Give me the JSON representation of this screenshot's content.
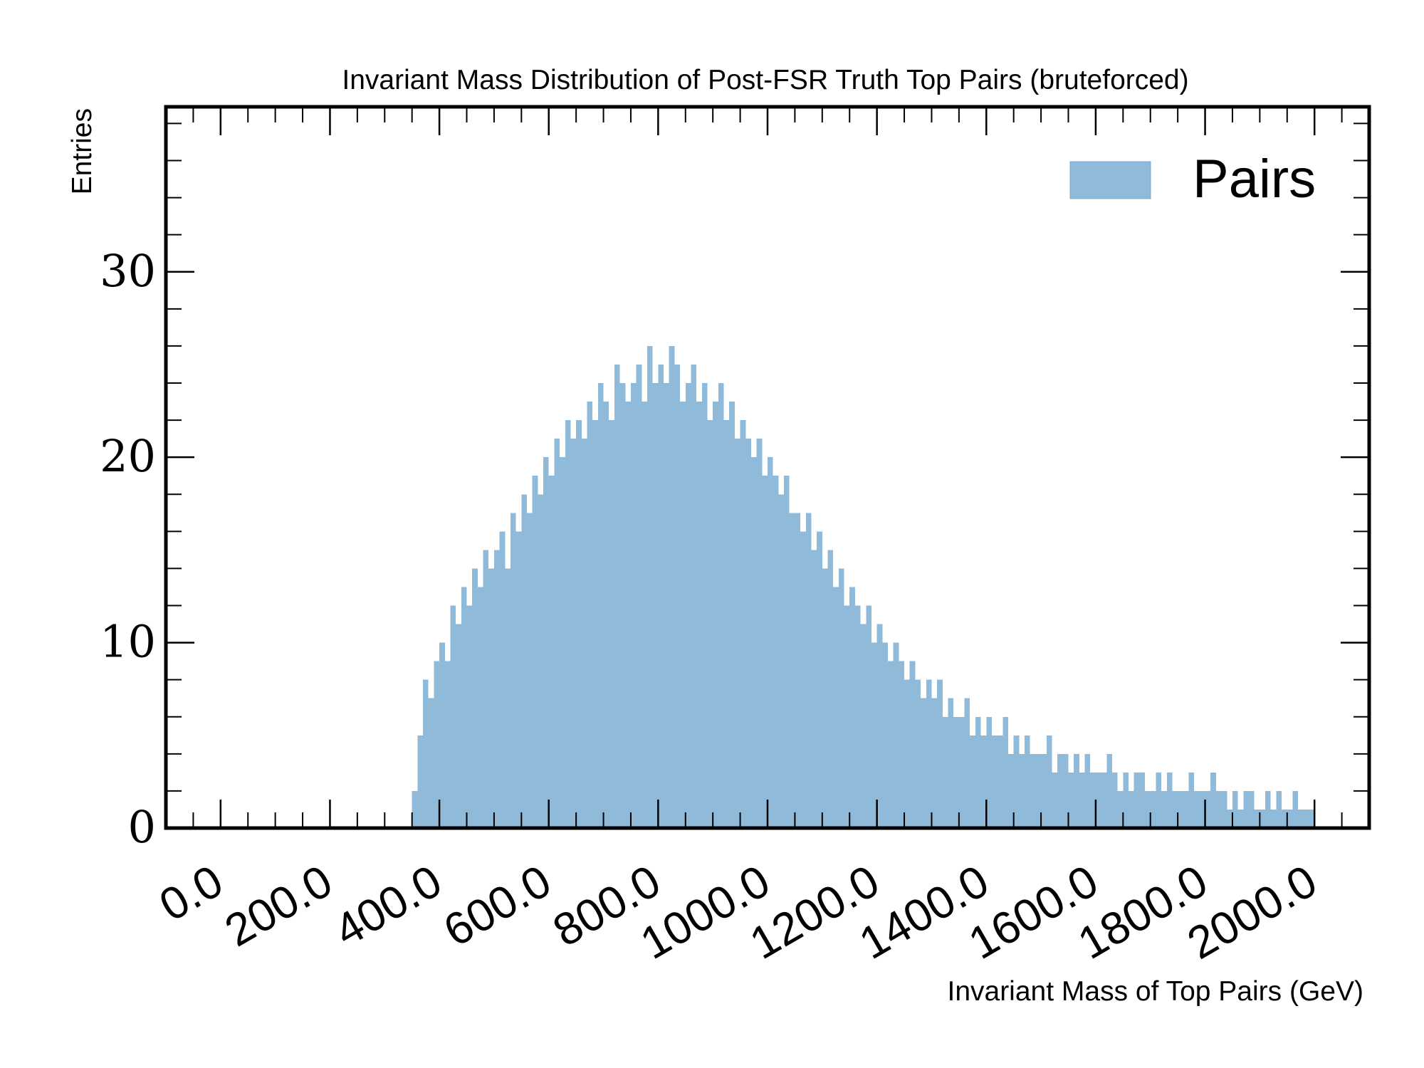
{
  "chart_data": {
    "type": "histogram",
    "title": "Invariant Mass Distribution of Post-FSR Truth Top Pairs (bruteforced)",
    "xlabel": "Invariant Mass of Top Pairs (GeV)",
    "ylabel": "Entries",
    "series": [
      {
        "name": "Pairs",
        "color": "#8fbad9",
        "bins": [
          350,
          360,
          370,
          380,
          390,
          400,
          410,
          420,
          430,
          440,
          450,
          460,
          470,
          480,
          490,
          500,
          510,
          520,
          530,
          540,
          550,
          560,
          570,
          580,
          590,
          600,
          610,
          620,
          630,
          640,
          650,
          660,
          670,
          680,
          690,
          700,
          710,
          720,
          730,
          740,
          750,
          760,
          770,
          780,
          790,
          800,
          810,
          820,
          830,
          840,
          850,
          860,
          870,
          880,
          890,
          900,
          910,
          920,
          930,
          940,
          950,
          960,
          970,
          980,
          990,
          1000,
          1010,
          1020,
          1030,
          1040,
          1050,
          1060,
          1070,
          1080,
          1090,
          1100,
          1110,
          1120,
          1130,
          1140,
          1150,
          1160,
          1170,
          1180,
          1190,
          1200,
          1210,
          1220,
          1230,
          1240,
          1250,
          1260,
          1270,
          1280,
          1290,
          1300,
          1310,
          1320,
          1330,
          1340,
          1350,
          1360,
          1370,
          1380,
          1390,
          1400,
          1410,
          1420,
          1430,
          1440,
          1450,
          1460,
          1470,
          1480,
          1490,
          1500,
          1510,
          1520,
          1530,
          1540,
          1550,
          1560,
          1570,
          1580,
          1590,
          1600,
          1610,
          1620,
          1630,
          1640,
          1650,
          1660,
          1670,
          1680,
          1690,
          1700,
          1710,
          1720,
          1730,
          1740,
          1750,
          1760,
          1770,
          1780,
          1790,
          1800,
          1810,
          1820,
          1830,
          1840,
          1850,
          1860,
          1870,
          1880,
          1890,
          1900,
          1910,
          1920,
          1930,
          1940,
          1950,
          1960,
          1970,
          1980,
          1990,
          2000
        ],
        "values": [
          2,
          5,
          8,
          7,
          9,
          10,
          9,
          12,
          11,
          13,
          12,
          14,
          13,
          15,
          14,
          15,
          16,
          14,
          17,
          16,
          18,
          17,
          19,
          18,
          20,
          19,
          21,
          20,
          22,
          21,
          22,
          21,
          23,
          22,
          24,
          23,
          22,
          25,
          24,
          23,
          24,
          25,
          23,
          26,
          24,
          25,
          24,
          26,
          25,
          23,
          24,
          25,
          23,
          24,
          22,
          23,
          24,
          22,
          23,
          21,
          22,
          21,
          20,
          21,
          19,
          20,
          19,
          18,
          19,
          17,
          17,
          16,
          17,
          15,
          16,
          14,
          15,
          13,
          14,
          12,
          13,
          12,
          11,
          12,
          10,
          11,
          10,
          9,
          10,
          9,
          8,
          9,
          8,
          7,
          8,
          7,
          8,
          6,
          7,
          6,
          6,
          7,
          5,
          6,
          5,
          6,
          5,
          5,
          6,
          4,
          5,
          4,
          5,
          4,
          4,
          4,
          5,
          3,
          4,
          4,
          3,
          4,
          3,
          4,
          3,
          3,
          3,
          4,
          3,
          2,
          3,
          2,
          3,
          3,
          2,
          2,
          3,
          2,
          3,
          2,
          2,
          2,
          3,
          2,
          2,
          2,
          3,
          2,
          2,
          1,
          2,
          1,
          2,
          2,
          1,
          1,
          2,
          1,
          2,
          1,
          1,
          2,
          1,
          1,
          1
        ]
      }
    ],
    "xlim": [
      -100,
      2100
    ],
    "ylim": [
      0,
      38.9
    ],
    "xticks": [
      {
        "value": 0,
        "label": "0.0"
      },
      {
        "value": 200,
        "label": "200.0"
      },
      {
        "value": 400,
        "label": "400.0"
      },
      {
        "value": 600,
        "label": "600.0"
      },
      {
        "value": 800,
        "label": "800.0"
      },
      {
        "value": 1000,
        "label": "1000.0"
      },
      {
        "value": 1200,
        "label": "1200.0"
      },
      {
        "value": 1400,
        "label": "1400.0"
      },
      {
        "value": 1600,
        "label": "1600.0"
      },
      {
        "value": 1800,
        "label": "1800.0"
      },
      {
        "value": 2000,
        "label": "2000.0"
      }
    ],
    "xminorticks": [
      -100,
      -50,
      50,
      100,
      150,
      250,
      300,
      350,
      450,
      500,
      550,
      650,
      700,
      750,
      850,
      900,
      950,
      1050,
      1100,
      1150,
      1250,
      1300,
      1350,
      1450,
      1500,
      1550,
      1650,
      1700,
      1750,
      1850,
      1900,
      1950,
      2050,
      2100
    ],
    "yticks": [
      0,
      10,
      20,
      30
    ],
    "yminorticks": [
      2,
      4,
      6,
      8,
      12,
      14,
      16,
      18,
      22,
      24,
      26,
      28,
      32,
      34,
      36,
      38
    ],
    "legend": "upper right"
  }
}
